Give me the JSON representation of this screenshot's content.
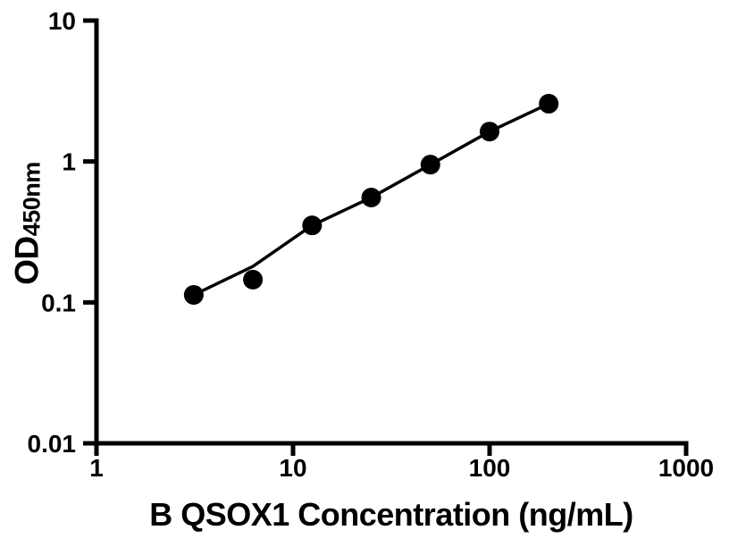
{
  "figure": {
    "background": "#ffffff",
    "ink_color": "#000000"
  },
  "chart_data": {
    "type": "scatter",
    "title": "",
    "xlabel": "B QSOX1 Concentration (ng/mL)",
    "ylabel": {
      "main": "OD",
      "sub": "450nm"
    },
    "x_scale": "log",
    "y_scale": "log",
    "xlim": [
      1,
      1000
    ],
    "ylim": [
      0.01,
      10
    ],
    "x_ticks": {
      "values": [
        1,
        10,
        100,
        1000
      ],
      "labels": [
        "1",
        "10",
        "100",
        "1000"
      ]
    },
    "y_ticks": {
      "values": [
        10,
        1,
        0.1,
        0.01
      ],
      "labels": [
        "10",
        "1",
        "0.1",
        "0.01"
      ]
    },
    "grid": false,
    "legend": "none",
    "series": [
      {
        "name": "fit-line",
        "type": "line",
        "color": "#000000",
        "x": [
          3.125,
          6.25,
          12.5,
          25,
          50,
          100,
          200
        ],
        "y": [
          0.113,
          0.18,
          0.352,
          0.555,
          0.95,
          1.63,
          2.57
        ]
      },
      {
        "name": "standard-points",
        "type": "scatter",
        "marker": "filled-circle",
        "color": "#000000",
        "x": [
          3.125,
          6.25,
          12.5,
          25,
          50,
          100,
          200
        ],
        "y": [
          0.113,
          0.145,
          0.352,
          0.555,
          0.95,
          1.63,
          2.57
        ]
      }
    ]
  }
}
